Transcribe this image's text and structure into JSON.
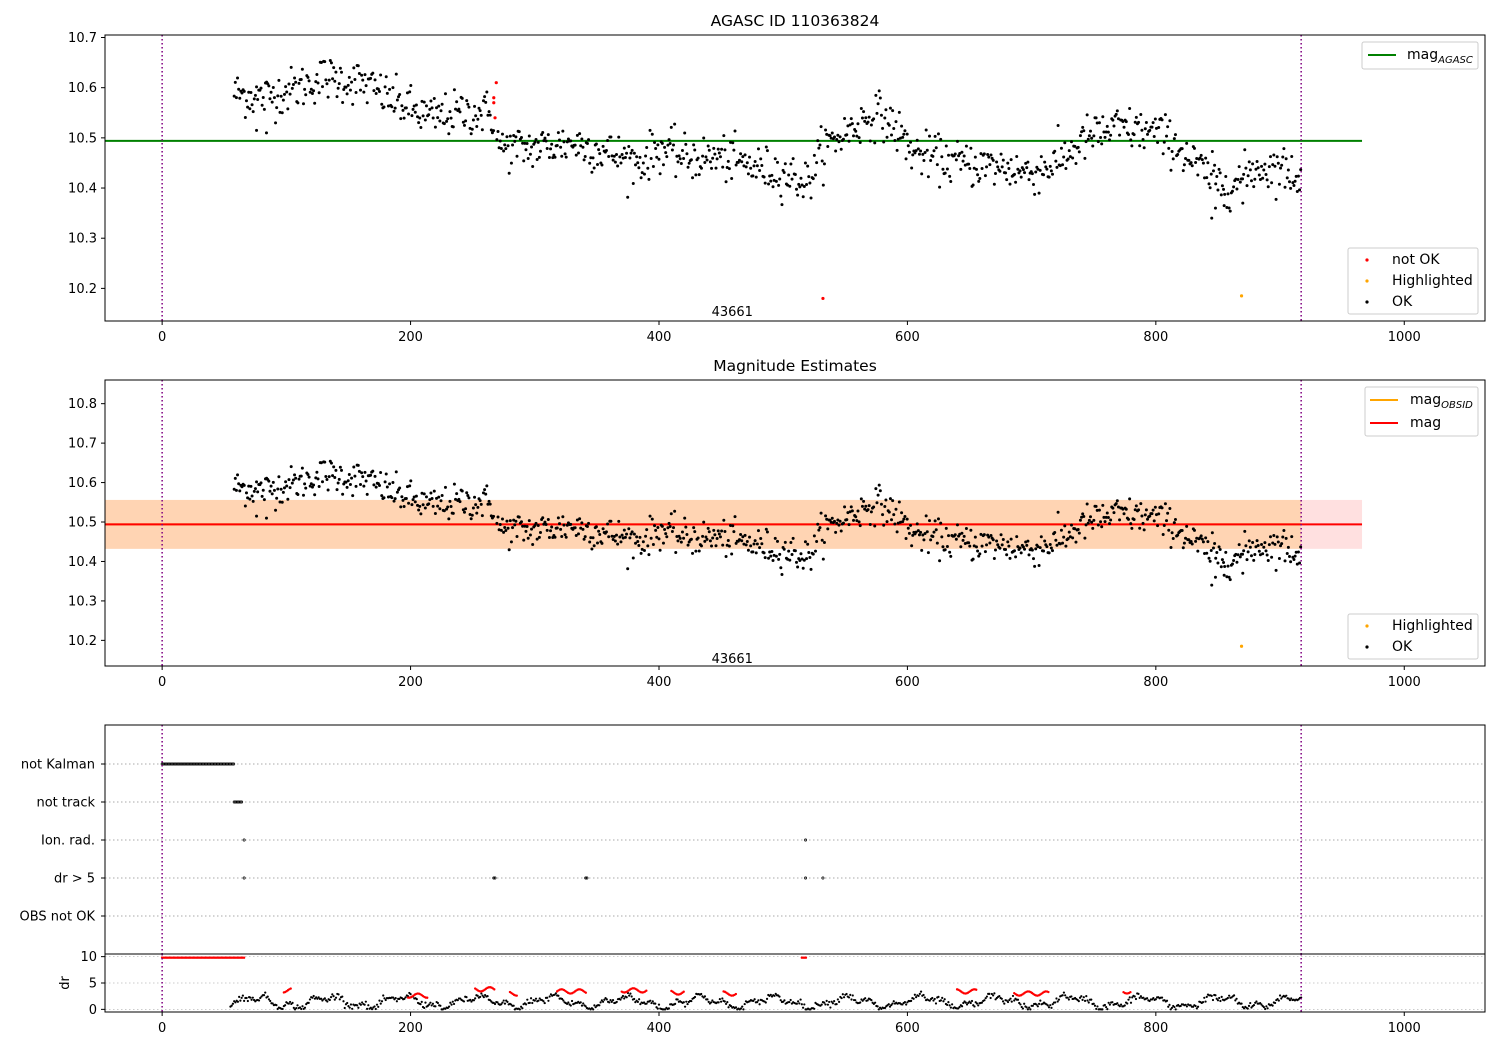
{
  "chart_data": [
    {
      "type": "scatter",
      "title": "AGASC ID 110363824",
      "xlim": [
        -46,
        1065
      ],
      "ylim": [
        10.135,
        10.705
      ],
      "xticks": [
        "0",
        "200",
        "400",
        "600",
        "800",
        "1000"
      ],
      "yticks": [
        "10.2",
        "10.3",
        "10.4",
        "10.5",
        "10.6",
        "10.7"
      ],
      "series": [
        {
          "name": "mag",
          "sub": "AGASC",
          "kind": "hline",
          "y": 10.494,
          "x_end": 966,
          "color": "#008000"
        },
        {
          "name": "not OK",
          "kind": "points",
          "color": "#ff0000",
          "points": [
            [
              267,
              10.58
            ],
            [
              268,
              10.54
            ],
            [
              269,
              10.61
            ],
            [
              267,
              10.57
            ],
            [
              532,
              10.18
            ]
          ]
        },
        {
          "name": "Highlighted",
          "kind": "points",
          "color": "#ffa500",
          "points": [
            [
              869,
              10.185
            ]
          ]
        },
        {
          "name": "OK",
          "kind": "points",
          "color": "#000000",
          "generated": true
        }
      ],
      "annotations": [
        {
          "text": "43661",
          "x": 459,
          "y": 10.155
        }
      ],
      "vlines": [
        0,
        917
      ]
    },
    {
      "type": "scatter",
      "title": "Magnitude Estimates",
      "xlim": [
        -46,
        1065
      ],
      "ylim": [
        10.135,
        10.86
      ],
      "xticks": [
        "0",
        "200",
        "400",
        "600",
        "800",
        "1000"
      ],
      "yticks": [
        "10.2",
        "10.3",
        "10.4",
        "10.5",
        "10.6",
        "10.7",
        "10.8"
      ],
      "series": [
        {
          "name": "mag",
          "sub": "OBSID",
          "kind": "band",
          "y": 10.494,
          "lo": 10.432,
          "hi": 10.556,
          "x_end": 917,
          "color": "#ffa500"
        },
        {
          "name": "mag",
          "kind": "band",
          "y": 10.494,
          "lo": 10.432,
          "hi": 10.556,
          "x_end": 966,
          "color": "#ff0000"
        },
        {
          "name": "Highlighted",
          "kind": "points",
          "color": "#ffa500",
          "points": [
            [
              869,
              10.185
            ]
          ]
        },
        {
          "name": "OK",
          "kind": "points",
          "color": "#000000",
          "generated": true
        }
      ],
      "annotations": [
        {
          "text": "43661",
          "x": 459,
          "y": 10.155
        }
      ],
      "vlines": [
        0,
        917
      ]
    },
    {
      "type": "scatter",
      "title": "",
      "xlim": [
        -46,
        1065
      ],
      "categories": [
        "not Kalman",
        "not track",
        "Ion. rad.",
        "dr > 5",
        "OBS not OK"
      ],
      "flags": [
        {
          "category": "not Kalman",
          "x_ranges": [
            [
              0,
              58
            ]
          ]
        },
        {
          "category": "not track",
          "x_ranges": [
            [
              58,
              65
            ]
          ]
        },
        {
          "category": "Ion. rad.",
          "x_points": [
            66,
            518
          ]
        },
        {
          "category": "dr > 5",
          "x_points": [
            66,
            267,
            268,
            341,
            342,
            518,
            532
          ]
        },
        {
          "category": "OBS not OK",
          "x_points": []
        }
      ],
      "vlines": [
        0,
        917
      ]
    },
    {
      "type": "scatter",
      "title": "",
      "ylabel": "dr",
      "xlim": [
        -46,
        1065
      ],
      "ylim": [
        -0.5,
        10.5
      ],
      "xticks": [
        "0",
        "200",
        "400",
        "600",
        "800",
        "1000"
      ],
      "yticks": [
        "0",
        "5",
        "10"
      ],
      "dr_red_ranges": [
        [
          0,
          67,
          9.8
        ],
        [
          98,
          104,
          3.6
        ],
        [
          198,
          214,
          2.6
        ],
        [
          252,
          268,
          3.8
        ],
        [
          280,
          286,
          3.0
        ],
        [
          318,
          342,
          3.4
        ],
        [
          370,
          390,
          3.6
        ],
        [
          410,
          420,
          3.2
        ],
        [
          452,
          462,
          3.0
        ],
        [
          515,
          519,
          9.8
        ],
        [
          640,
          656,
          3.4
        ],
        [
          686,
          714,
          3.0
        ],
        [
          774,
          780,
          3.4
        ]
      ],
      "vlines": [
        0,
        917
      ]
    }
  ]
}
